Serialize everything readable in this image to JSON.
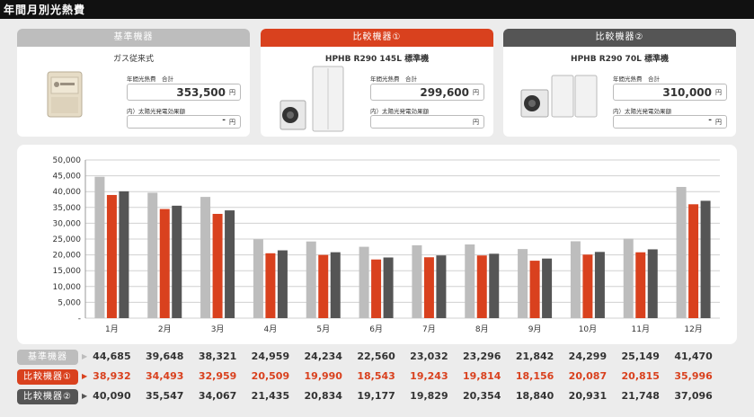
{
  "page_title": "年間月別光熱費",
  "colors": {
    "standard": "#bdbdbd",
    "compare1": "#d9411e",
    "compare2": "#555555"
  },
  "cards": [
    {
      "header": "基準機器",
      "model": "ガス従来式",
      "annual_label": "年間光熱費　合計",
      "annual_value": "353,500",
      "unit": "円",
      "solar_label": "内）太陽光発電効果額",
      "solar_value": "-",
      "image": "gas-water-heater-image"
    },
    {
      "header": "比較機器①",
      "model": "HPHB R290 145L 標準機",
      "annual_label": "年間光熱費　合計",
      "annual_value": "299,600",
      "unit": "円",
      "solar_label": "内）太陽光発電効果額",
      "solar_value": "",
      "image": "heat-pump-145l-image"
    },
    {
      "header": "比較機器②",
      "model": "HPHB R290 70L 標準機",
      "annual_label": "年間光熱費　合計",
      "annual_value": "310,000",
      "unit": "円",
      "solar_label": "内）太陽光発電効果額",
      "solar_value": "-",
      "image": "heat-pump-70l-image"
    }
  ],
  "chart_data": {
    "type": "bar",
    "categories": [
      "1月",
      "2月",
      "3月",
      "4月",
      "5月",
      "6月",
      "7月",
      "8月",
      "9月",
      "10月",
      "11月",
      "12月"
    ],
    "series": [
      {
        "name": "基準機器",
        "values": [
          44685,
          39648,
          38321,
          24959,
          24234,
          22560,
          23032,
          23296,
          21842,
          24299,
          25149,
          41470
        ]
      },
      {
        "name": "比較機器①",
        "values": [
          38932,
          34493,
          32959,
          20509,
          19990,
          18543,
          19243,
          19814,
          18156,
          20087,
          20815,
          35996
        ]
      },
      {
        "name": "比較機器②",
        "values": [
          40090,
          35547,
          34067,
          21435,
          20834,
          19177,
          19829,
          20354,
          18840,
          20931,
          21748,
          37096
        ]
      }
    ],
    "ylim": [
      0,
      50000
    ],
    "yticks": [
      "-",
      "5,000",
      "10,000",
      "15,000",
      "20,000",
      "25,000",
      "30,000",
      "35,000",
      "40,000",
      "45,000",
      "50,000"
    ],
    "grid": true
  },
  "table": {
    "rows": [
      {
        "label": "基準機器",
        "cells": [
          "44,685",
          "39,648",
          "38,321",
          "24,959",
          "24,234",
          "22,560",
          "23,032",
          "23,296",
          "21,842",
          "24,299",
          "25,149",
          "41,470"
        ]
      },
      {
        "label": "比較機器①",
        "cells": [
          "38,932",
          "34,493",
          "32,959",
          "20,509",
          "19,990",
          "18,543",
          "19,243",
          "19,814",
          "18,156",
          "20,087",
          "20,815",
          "35,996"
        ]
      },
      {
        "label": "比較機器②",
        "cells": [
          "40,090",
          "35,547",
          "34,067",
          "21,435",
          "20,834",
          "19,177",
          "19,829",
          "20,354",
          "18,840",
          "20,931",
          "21,748",
          "37,096"
        ]
      }
    ]
  }
}
